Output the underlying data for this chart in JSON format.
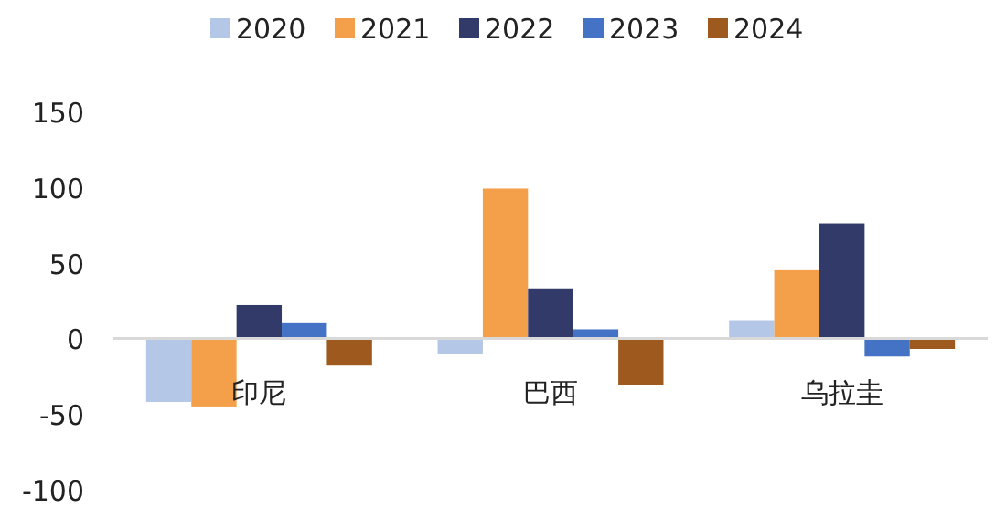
{
  "chart_data": {
    "type": "bar",
    "categories": [
      "印尼",
      "巴西",
      "乌拉圭"
    ],
    "series": [
      {
        "name": "2020",
        "color": "#b4c7e7",
        "values": [
          -42,
          -10,
          12
        ]
      },
      {
        "name": "2021",
        "color": "#f4a04a",
        "values": [
          -45,
          99,
          45
        ]
      },
      {
        "name": "2022",
        "color": "#323a6a",
        "values": [
          22,
          33,
          76
        ]
      },
      {
        "name": "2023",
        "color": "#4472c4",
        "values": [
          10,
          6,
          -12
        ]
      },
      {
        "name": "2024",
        "color": "#9e5a1e",
        "values": [
          -18,
          -31,
          -7
        ]
      }
    ],
    "ylim": [
      -100,
      150
    ],
    "yticks": [
      -100,
      -50,
      0,
      50,
      100,
      150
    ],
    "grid": false,
    "legend": "top"
  }
}
